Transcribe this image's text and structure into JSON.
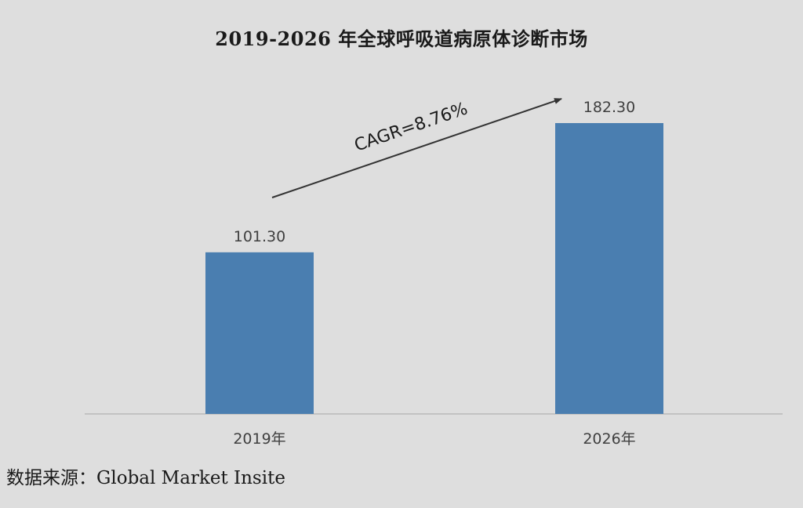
{
  "chart_data": {
    "type": "bar",
    "title": "2019-2026 年全球呼吸道病原体诊断市场",
    "categories": [
      "2019年",
      "2026年"
    ],
    "values": [
      101.3,
      182.3
    ],
    "value_labels": [
      "101.30",
      "182.30"
    ],
    "xlabel": "",
    "ylabel": "",
    "ylim": [
      0,
      182.3
    ],
    "grid": false,
    "legend": "none",
    "annotations": [
      {
        "text": "CAGR=8.76%",
        "kind": "trend-arrow"
      }
    ],
    "colors": {
      "bar": "#4a7eb0",
      "background": "#dedede",
      "axis": "#b8b8b8",
      "arrow": "#333333"
    }
  },
  "source": "数据来源：Global Market Insite"
}
